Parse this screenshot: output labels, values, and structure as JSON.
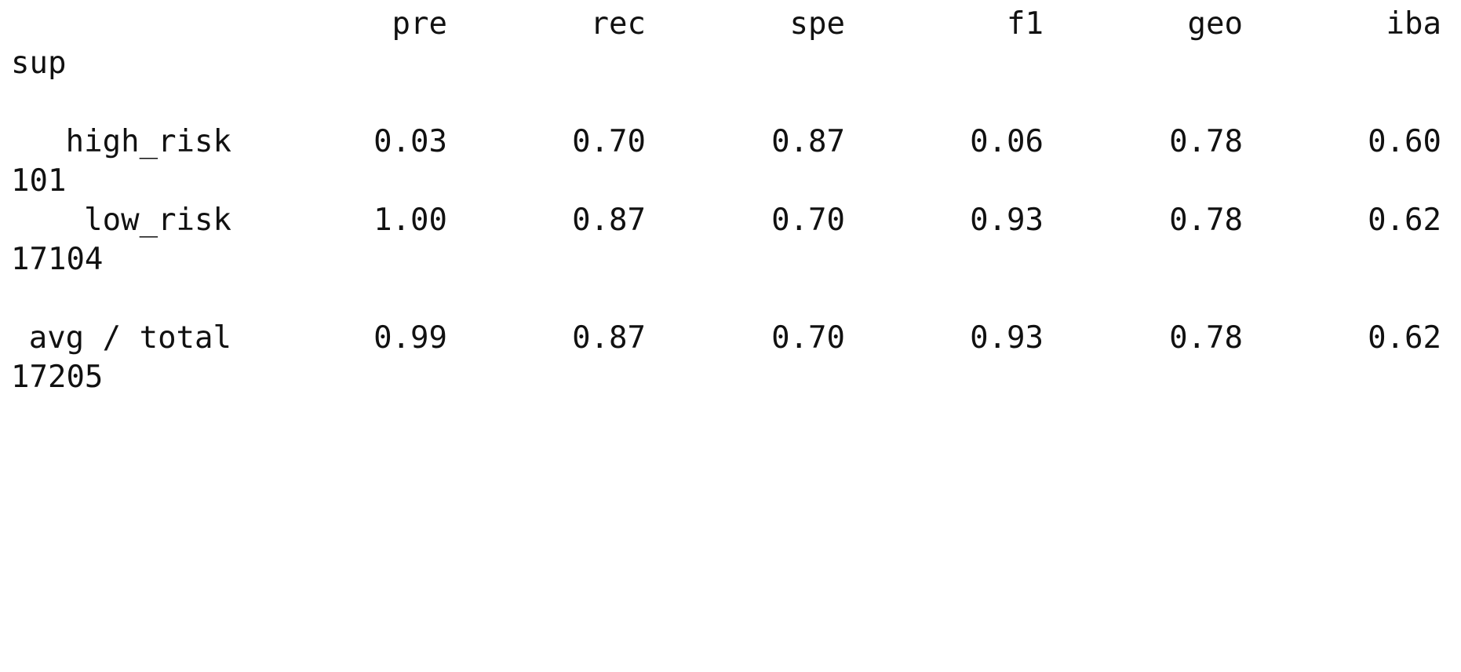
{
  "report": {
    "headers": [
      "pre",
      "rec",
      "spe",
      "f1",
      "geo",
      "iba",
      "sup"
    ],
    "rows": [
      {
        "label": "high_risk",
        "values": [
          "0.03",
          "0.70",
          "0.87",
          "0.06",
          "0.78",
          "0.60"
        ],
        "support": "101"
      },
      {
        "label": "low_risk",
        "values": [
          "1.00",
          "0.87",
          "0.70",
          "0.93",
          "0.78",
          "0.62"
        ],
        "support": "17104"
      }
    ],
    "total": {
      "label": "avg / total",
      "values": [
        "0.99",
        "0.87",
        "0.70",
        "0.93",
        "0.78",
        "0.62"
      ],
      "support": "17205"
    }
  }
}
